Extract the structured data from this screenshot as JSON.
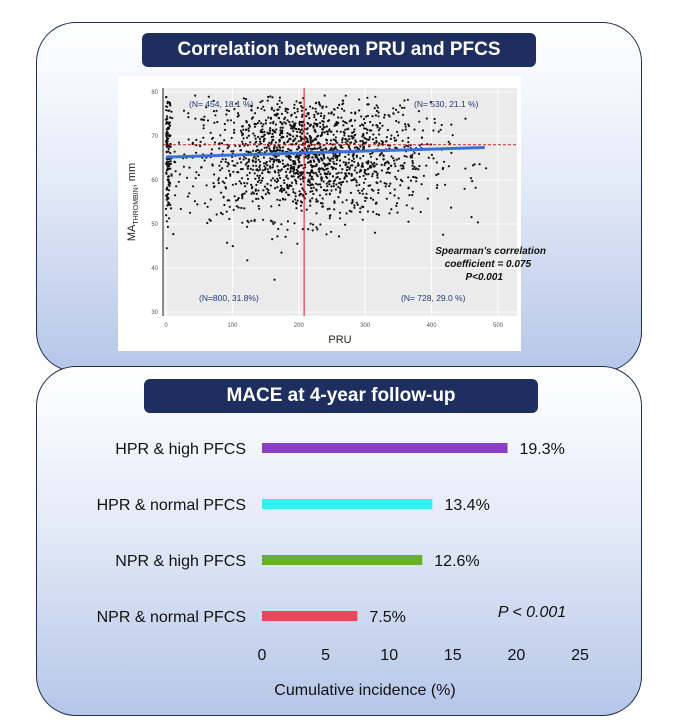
{
  "panels": {
    "top": {
      "title": "Correlation between PRU and PFCS"
    },
    "bottom": {
      "title": "MACE at 4-year follow-up"
    }
  },
  "chart_data": [
    {
      "type": "scatter",
      "title": "Correlation between PRU and PFCS",
      "xlabel": "PRU",
      "ylabel_main": "MA",
      "ylabel_sub": "THROMBIN",
      "ylabel_unit": ", mm",
      "xlim": [
        0,
        500
      ],
      "ylim": [
        30,
        80
      ],
      "xticks": [
        0,
        100,
        200,
        300,
        400,
        500
      ],
      "yticks": [
        30,
        40,
        50,
        60,
        70,
        80
      ],
      "cutoff_x": 208,
      "cutoff_y": 68,
      "regression": {
        "x": [
          0,
          480
        ],
        "y": [
          65.2,
          67.4
        ]
      },
      "quadrants": [
        {
          "name": "upper-left",
          "label": "(N= 454, 18.1 %)"
        },
        {
          "name": "upper-right",
          "label": "(N= 530, 21.1 %)"
        },
        {
          "name": "lower-left",
          "label": "(N=800, 31.8%)"
        },
        {
          "name": "lower-right",
          "label": "(N= 728, 29.0 %)"
        }
      ],
      "annotation": [
        "Spearman's correlation",
        "coefficient = 0.075",
        "P<0.001"
      ],
      "point_count": 2512,
      "point_distribution": {
        "x_mean": 215,
        "x_sd": 90,
        "y_mean": 65.5,
        "y_sd": 7
      },
      "colors": {
        "points": "#111111",
        "cutoff": "#d62020",
        "regression": "#3a6fd8",
        "background": "#ebebeb",
        "annotation": "#1f3b73"
      }
    },
    {
      "type": "bar",
      "orientation": "horizontal",
      "title": "MACE at 4-year follow-up",
      "categories": [
        "HPR & high PFCS",
        "HPR & normal PFCS",
        "NPR & high PFCS",
        "NPR & normal PFCS"
      ],
      "values": [
        19.3,
        13.4,
        12.6,
        7.5
      ],
      "value_labels": [
        "19.3%",
        "13.4%",
        "12.6%",
        "7.5%"
      ],
      "colors": [
        "#8a3fc4",
        "#33f0ef",
        "#66b02d",
        "#e8485c"
      ],
      "xlim": [
        0,
        25
      ],
      "xticks": [
        0,
        5,
        10,
        15,
        20,
        25
      ],
      "xlabel": "Cumulative incidence (%)",
      "annotation": "P < 0.001"
    }
  ]
}
